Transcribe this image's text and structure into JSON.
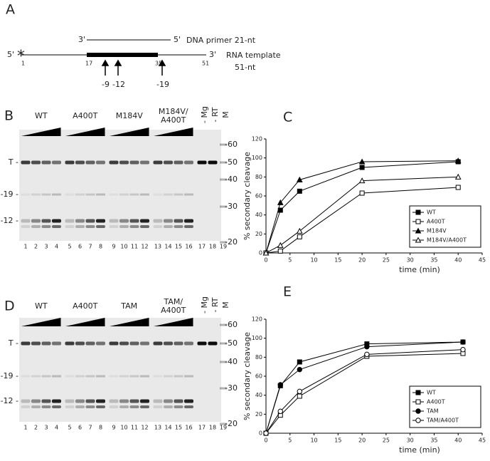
{
  "schematic": {
    "label": "A",
    "primer_3": "3'",
    "primer_5": "5'",
    "primer_name": "DNA primer 21-nt",
    "template_5": "5'",
    "template_3": "3'",
    "template_name": "RNA template",
    "template_length": "51-nt",
    "star": "*",
    "positions": [
      "1",
      "17",
      "35",
      "51"
    ],
    "arrows": [
      "-9",
      "-12",
      "-19"
    ]
  },
  "gels": [
    {
      "label": "B",
      "groups": [
        "WT",
        "A400T",
        "M184V",
        [
          "M184V/",
          "A400T"
        ]
      ],
      "controls": [
        "- Mg",
        "- RT",
        "M"
      ],
      "lanes": [
        "1",
        "2",
        "3",
        "4",
        "5",
        "6",
        "7",
        "8",
        "9",
        "10",
        "11",
        "12",
        "13",
        "14",
        "15",
        "16",
        "17",
        "18",
        "19"
      ],
      "rows": [
        "T -",
        "-19 -",
        "-12 -"
      ],
      "markers": [
        "-60",
        "-50",
        "-40",
        "-30",
        "-20"
      ]
    },
    {
      "label": "D",
      "groups": [
        "WT",
        "A400T",
        "TAM",
        [
          "TAM/",
          "A400T"
        ]
      ],
      "controls": [
        "- Mg",
        "- RT",
        "M"
      ],
      "lanes": [
        "1",
        "2",
        "3",
        "4",
        "5",
        "6",
        "7",
        "8",
        "9",
        "10",
        "11",
        "12",
        "13",
        "14",
        "15",
        "16",
        "17",
        "18",
        "19"
      ],
      "rows": [
        "T -",
        "-19 -",
        "-12 -"
      ],
      "markers": [
        "-60",
        "-50",
        "-40",
        "-30",
        "-20"
      ]
    }
  ],
  "chart_data": [
    {
      "type": "line",
      "label": "C",
      "y_label": "% secondary cleavage",
      "x_label": "time (min)",
      "x": [
        0,
        3,
        7,
        20,
        40
      ],
      "xlim": [
        0,
        45
      ],
      "xticks": [
        0,
        5,
        10,
        15,
        20,
        25,
        30,
        35,
        40,
        45
      ],
      "ylim": [
        0,
        120
      ],
      "yticks": [
        0,
        20,
        40,
        60,
        80,
        100,
        120
      ],
      "legend": "lower right",
      "series": [
        {
          "name": "WT",
          "color": "#000000",
          "marker": "square",
          "filled": true,
          "values": [
            0,
            45,
            65,
            90,
            96
          ]
        },
        {
          "name": "A400T",
          "color": "#000000",
          "marker": "square",
          "filled": false,
          "values": [
            0,
            2,
            17,
            63,
            69
          ]
        },
        {
          "name": "M184V",
          "color": "#000000",
          "marker": "triangle",
          "filled": true,
          "values": [
            0,
            53,
            77,
            96,
            97
          ]
        },
        {
          "name": "M184V/A400T",
          "color": "#000000",
          "marker": "triangle",
          "filled": false,
          "values": [
            0,
            8,
            23,
            76,
            80
          ]
        }
      ]
    },
    {
      "type": "line",
      "label": "E",
      "y_label": "% secondary cleavage",
      "x_label": "time (min)",
      "x": [
        0,
        3,
        7,
        21,
        41
      ],
      "xlim": [
        0,
        45
      ],
      "xticks": [
        0,
        5,
        10,
        15,
        20,
        25,
        30,
        35,
        40,
        45
      ],
      "ylim": [
        0,
        120
      ],
      "yticks": [
        0,
        20,
        40,
        60,
        80,
        100,
        120
      ],
      "legend": "lower right",
      "series": [
        {
          "name": "WT",
          "color": "#000000",
          "marker": "square",
          "filled": true,
          "values": [
            0,
            50,
            75,
            94,
            96
          ]
        },
        {
          "name": "A400T",
          "color": "#000000",
          "marker": "square",
          "filled": false,
          "values": [
            0,
            19,
            39,
            81,
            84
          ]
        },
        {
          "name": "TAM",
          "color": "#000000",
          "marker": "circle",
          "filled": true,
          "values": [
            0,
            51,
            67,
            91,
            96
          ]
        },
        {
          "name": "TAM/A400T",
          "color": "#000000",
          "marker": "circle",
          "filled": false,
          "values": [
            0,
            23,
            44,
            83,
            88
          ]
        }
      ]
    }
  ]
}
